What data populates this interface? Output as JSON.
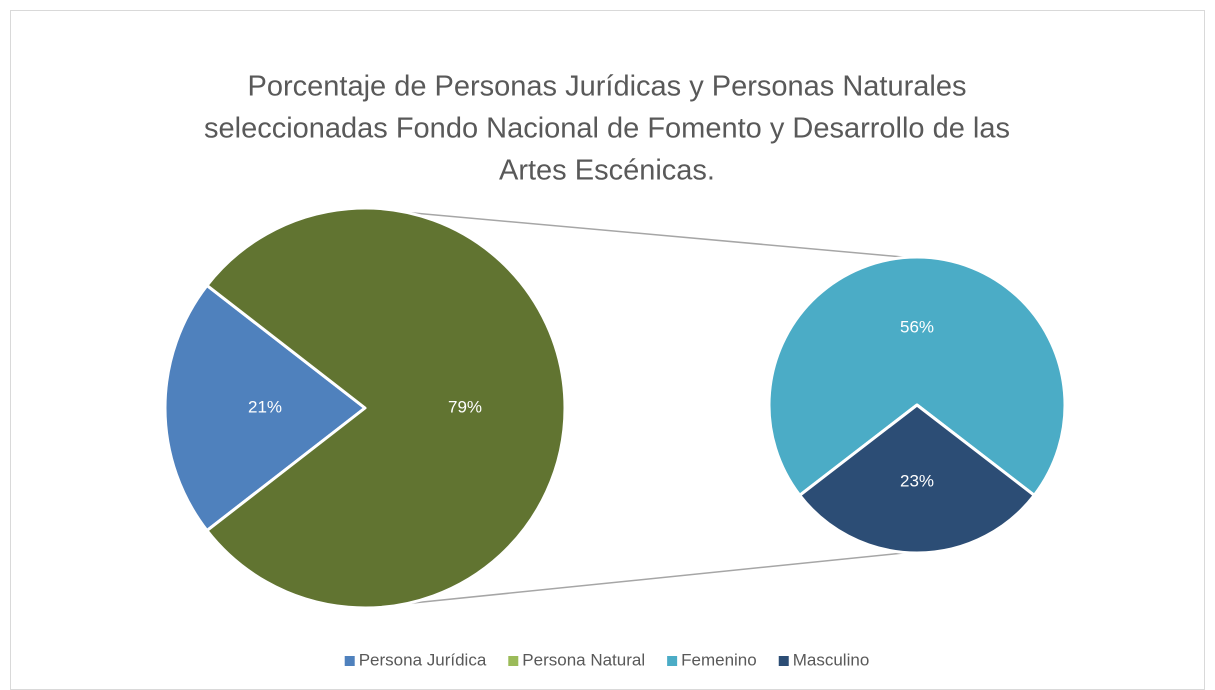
{
  "chart_data": {
    "type": "pie_of_pie",
    "title": [
      "Porcentaje de Personas Jurídicas y Personas Naturales",
      "seleccionadas Fondo Nacional de Fomento y Desarrollo de las",
      "Artes Escénicas."
    ],
    "main": {
      "categories": [
        "Persona Jurídica",
        "Persona Natural"
      ],
      "values": [
        21,
        79
      ],
      "value_labels": [
        "21%",
        "79%"
      ],
      "colors": [
        "#4f81bd",
        "#9bbb59"
      ],
      "expanded_color": "#617431"
    },
    "secondary": {
      "categories": [
        "Femenino",
        "Masculino"
      ],
      "values": [
        56,
        23
      ],
      "value_labels": [
        "56%",
        "23%"
      ],
      "colors": [
        "#4bacc6",
        "#2c4d75"
      ]
    },
    "legend": "bottom"
  }
}
